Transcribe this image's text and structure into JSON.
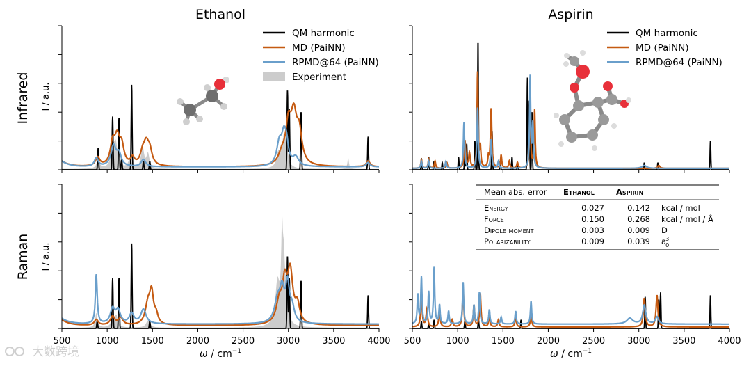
{
  "chart_data": {
    "type": "line",
    "columns": [
      "Ethanol",
      "Aspirin"
    ],
    "rows": [
      "Infrared",
      "Raman"
    ],
    "ylabel": "I / a.u.",
    "xlabel_sym": "ω",
    "xlabel_unit": " / cm",
    "xlabel_exp": "−1",
    "xlim": [
      500,
      4000
    ],
    "ylim": [
      0,
      1
    ],
    "xticks": [
      500,
      1000,
      1500,
      2000,
      2500,
      3000,
      3500,
      4000
    ],
    "series_names": [
      "QM harmonic",
      "MD (PaiNN)",
      "RPMD@64 (PaiNN)",
      "Experiment"
    ],
    "colors": {
      "qm": "#000000",
      "md": "#c55a11",
      "rpmd": "#6a9fcb",
      "exp": "#cccccc"
    },
    "legend_ethanol": [
      "QM harmonic",
      "MD (PaiNN)",
      "RPMD@64 (PaiNN)",
      "Experiment"
    ],
    "legend_aspirin": [
      "QM harmonic",
      "MD (PaiNN)",
      "RPMD@64 (PaiNN)"
    ],
    "panels": {
      "eth_ir": {
        "qm": [
          [
            900,
            0.15
          ],
          [
            1060,
            0.37
          ],
          [
            1130,
            0.36
          ],
          [
            1160,
            0.07
          ],
          [
            1270,
            0.59
          ],
          [
            1400,
            0.06
          ],
          [
            1470,
            0.06
          ],
          [
            2990,
            0.55
          ],
          [
            3010,
            0.42
          ],
          [
            3140,
            0.4
          ],
          [
            3880,
            0.23
          ]
        ],
        "qm_width": 7,
        "md": [
          [
            895,
            0.06,
            28
          ],
          [
            1060,
            0.14,
            30
          ],
          [
            1110,
            0.18,
            35
          ],
          [
            1160,
            0.12,
            30
          ],
          [
            1280,
            0.05,
            25
          ],
          [
            1390,
            0.07,
            30
          ],
          [
            1430,
            0.14,
            35
          ],
          [
            1470,
            0.09,
            30
          ],
          [
            2930,
            0.07,
            45
          ],
          [
            3000,
            0.25,
            35
          ],
          [
            3060,
            0.32,
            40
          ],
          [
            3120,
            0.2,
            35
          ],
          [
            3880,
            0.04,
            25
          ]
        ],
        "rpmd": [
          [
            880,
            0.06,
            25
          ],
          [
            1070,
            0.14,
            35
          ],
          [
            1130,
            0.08,
            30
          ],
          [
            1400,
            0.05,
            30
          ],
          [
            2900,
            0.15,
            35
          ],
          [
            2950,
            0.18,
            30
          ],
          [
            2980,
            0.12,
            25
          ],
          [
            3080,
            0.06,
            40
          ],
          [
            3880,
            0.03,
            25
          ]
        ],
        "rpmd_base": 0.02,
        "md_base": 0.02,
        "exp": [
          [
            900,
            0.06,
            20
          ],
          [
            1060,
            0.12,
            25
          ],
          [
            1095,
            0.16,
            25
          ],
          [
            1250,
            0.06,
            25
          ],
          [
            1390,
            0.15,
            20
          ],
          [
            1450,
            0.1,
            20
          ],
          [
            2890,
            0.1,
            25
          ],
          [
            2950,
            0.2,
            25
          ],
          [
            2980,
            0.1,
            20
          ],
          [
            3660,
            0.08,
            10
          ]
        ]
      },
      "eth_ra": {
        "qm": [
          [
            890,
            0.05
          ],
          [
            1060,
            0.35
          ],
          [
            1130,
            0.35
          ],
          [
            1270,
            0.59
          ],
          [
            1470,
            0.05
          ],
          [
            2990,
            0.5
          ],
          [
            3010,
            0.35
          ],
          [
            3140,
            0.33
          ],
          [
            3880,
            0.23
          ]
        ],
        "qm_width": 7,
        "md": [
          [
            880,
            0.04,
            25
          ],
          [
            1060,
            0.06,
            30
          ],
          [
            1150,
            0.05,
            30
          ],
          [
            1450,
            0.14,
            35
          ],
          [
            1490,
            0.2,
            25
          ],
          [
            1540,
            0.06,
            25
          ],
          [
            2900,
            0.15,
            40
          ],
          [
            2960,
            0.25,
            30
          ],
          [
            3020,
            0.35,
            35
          ],
          [
            3100,
            0.12,
            30
          ]
        ],
        "rpmd": [
          [
            880,
            0.34,
            12
          ],
          [
            1060,
            0.1,
            30
          ],
          [
            1120,
            0.09,
            30
          ],
          [
            1270,
            0.07,
            30
          ],
          [
            1400,
            0.1,
            35
          ],
          [
            2880,
            0.15,
            40
          ],
          [
            2930,
            0.2,
            30
          ],
          [
            2990,
            0.25,
            25
          ],
          [
            3040,
            0.1,
            30
          ]
        ],
        "rpmd_base": 0.03,
        "md_base": 0.02,
        "exp": [
          [
            880,
            0.1,
            15
          ],
          [
            1060,
            0.06,
            20
          ],
          [
            1100,
            0.08,
            20
          ],
          [
            1450,
            0.05,
            25
          ],
          [
            2880,
            0.3,
            30
          ],
          [
            2930,
            0.55,
            12
          ],
          [
            2950,
            0.35,
            15
          ],
          [
            2980,
            0.2,
            20
          ]
        ]
      },
      "asp_ir": {
        "qm": [
          [
            600,
            0.08
          ],
          [
            680,
            0.09
          ],
          [
            740,
            0.06
          ],
          [
            830,
            0.05
          ],
          [
            1010,
            0.09
          ],
          [
            1080,
            0.2
          ],
          [
            1100,
            0.18
          ],
          [
            1190,
            0.2
          ],
          [
            1225,
            0.9
          ],
          [
            1380,
            0.27
          ],
          [
            1470,
            0.06
          ],
          [
            1600,
            0.09
          ],
          [
            1660,
            0.05
          ],
          [
            1770,
            0.64
          ],
          [
            1790,
            0.48
          ],
          [
            1820,
            0.4
          ],
          [
            3060,
            0.05
          ],
          [
            3210,
            0.05
          ],
          [
            3790,
            0.2
          ]
        ],
        "qm_width": 6,
        "md": [
          [
            600,
            0.06,
            8
          ],
          [
            680,
            0.06,
            8
          ],
          [
            750,
            0.05,
            8
          ],
          [
            880,
            0.04,
            8
          ],
          [
            1080,
            0.19,
            10
          ],
          [
            1130,
            0.1,
            10
          ],
          [
            1220,
            0.66,
            7
          ],
          [
            1250,
            0.14,
            8
          ],
          [
            1340,
            0.07,
            8
          ],
          [
            1370,
            0.41,
            9
          ],
          [
            1480,
            0.09,
            8
          ],
          [
            1570,
            0.05,
            8
          ],
          [
            1660,
            0.04,
            8
          ],
          [
            1800,
            0.54,
            7
          ],
          [
            1850,
            0.4,
            7
          ],
          [
            3220,
            0.02,
            15
          ]
        ],
        "rpmd": [
          [
            600,
            0.05,
            8
          ],
          [
            680,
            0.05,
            8
          ],
          [
            870,
            0.05,
            8
          ],
          [
            1070,
            0.32,
            8
          ],
          [
            1220,
            0.42,
            8
          ],
          [
            1370,
            0.2,
            8
          ],
          [
            1450,
            0.05,
            8
          ],
          [
            1800,
            0.63,
            7
          ],
          [
            1830,
            0.3,
            8
          ],
          [
            3060,
            0.02,
            30
          ]
        ],
        "rpmd_base": 0.01,
        "md_base": 0.01,
        "exp": []
      },
      "asp_ra": {
        "qm": [
          [
            600,
            0.05
          ],
          [
            680,
            0.03
          ],
          [
            740,
            0.06
          ],
          [
            1080,
            0.05
          ],
          [
            1230,
            0.06
          ],
          [
            1700,
            0.06
          ],
          [
            3070,
            0.22
          ],
          [
            3220,
            0.2
          ],
          [
            3240,
            0.25
          ],
          [
            3790,
            0.23
          ]
        ],
        "qm_width": 6,
        "md": [
          [
            600,
            0.2,
            10
          ],
          [
            660,
            0.12,
            10
          ],
          [
            800,
            0.1,
            10
          ],
          [
            940,
            0.05,
            10
          ],
          [
            1060,
            0.26,
            9
          ],
          [
            1180,
            0.15,
            9
          ],
          [
            1250,
            0.23,
            9
          ],
          [
            1350,
            0.07,
            9
          ],
          [
            1450,
            0.05,
            9
          ],
          [
            1640,
            0.07,
            9
          ],
          [
            1810,
            0.09,
            9
          ],
          [
            3060,
            0.2,
            12
          ],
          [
            3200,
            0.22,
            12
          ]
        ],
        "rpmd": [
          [
            560,
            0.2,
            8
          ],
          [
            600,
            0.32,
            8
          ],
          [
            680,
            0.22,
            8
          ],
          [
            740,
            0.39,
            8
          ],
          [
            800,
            0.13,
            8
          ],
          [
            900,
            0.09,
            8
          ],
          [
            1060,
            0.29,
            8
          ],
          [
            1180,
            0.13,
            8
          ],
          [
            1240,
            0.22,
            8
          ],
          [
            1350,
            0.1,
            8
          ],
          [
            1480,
            0.05,
            8
          ],
          [
            1640,
            0.09,
            8
          ],
          [
            1810,
            0.16,
            8
          ],
          [
            2900,
            0.04,
            40
          ],
          [
            3060,
            0.13,
            20
          ],
          [
            3200,
            0.05,
            20
          ]
        ],
        "rpmd_base": 0.03,
        "md_base": 0.01,
        "exp": []
      }
    }
  },
  "table": {
    "headers": [
      "Mean abs. error",
      "Ethanol",
      "Aspirin"
    ],
    "rows": [
      {
        "label": "Energy",
        "ethanol": "0.027",
        "aspirin": "0.142",
        "unit": "kcal / mol"
      },
      {
        "label": "Force",
        "ethanol": "0.150",
        "aspirin": "0.268",
        "unit": "kcal / mol / Å"
      },
      {
        "label": "Dipole moment",
        "ethanol": "0.003",
        "aspirin": "0.009",
        "unit": "D"
      },
      {
        "label": "Polarizability",
        "ethanol": "0.009",
        "aspirin": "0.039",
        "unit_base": "a",
        "unit_sub": "0",
        "unit_sup": "3"
      }
    ]
  },
  "watermark": "大数跨境"
}
